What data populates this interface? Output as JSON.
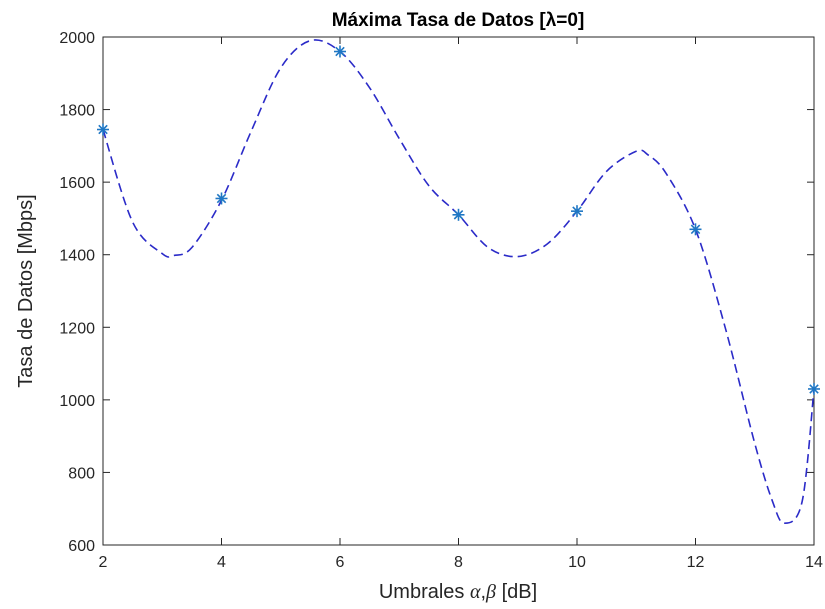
{
  "chart_data": {
    "type": "line",
    "title": "Máxima Tasa de Datos [λ=0]",
    "xlabel_parts": [
      "Umbrales ",
      "α",
      ",",
      "β",
      " [dB]"
    ],
    "ylabel": "Tasa de Datos [Mbps]",
    "xlim": [
      2,
      14
    ],
    "ylim": [
      600,
      2000
    ],
    "xticks": [
      2,
      4,
      6,
      8,
      10,
      12,
      14
    ],
    "yticks": [
      600,
      800,
      1000,
      1200,
      1400,
      1600,
      1800,
      2000
    ],
    "grid": false,
    "series": [
      {
        "style": "markers",
        "marker": "*",
        "color": "#1f77c4",
        "x": [
          2,
          4,
          6,
          8,
          10,
          12,
          14
        ],
        "y": [
          1745,
          1555,
          1960,
          1510,
          1520,
          1470,
          1030
        ]
      },
      {
        "style": "dashed-line",
        "color": "#2b2bc8",
        "x": [
          2,
          2.5,
          3,
          3.2,
          3.5,
          4,
          4.5,
          5,
          5.5,
          6,
          6.5,
          7,
          7.5,
          8,
          8.5,
          9,
          9.5,
          10,
          10.5,
          11,
          11.2,
          11.5,
          12,
          12.5,
          13,
          13.3,
          13.5,
          13.8,
          14
        ],
        "y": [
          1745,
          1490,
          1403,
          1398,
          1420,
          1550,
          1740,
          1915,
          1990,
          1960,
          1860,
          1720,
          1590,
          1510,
          1420,
          1395,
          1430,
          1520,
          1630,
          1685,
          1675,
          1625,
          1470,
          1200,
          880,
          720,
          660,
          720,
          1030
        ]
      }
    ]
  }
}
